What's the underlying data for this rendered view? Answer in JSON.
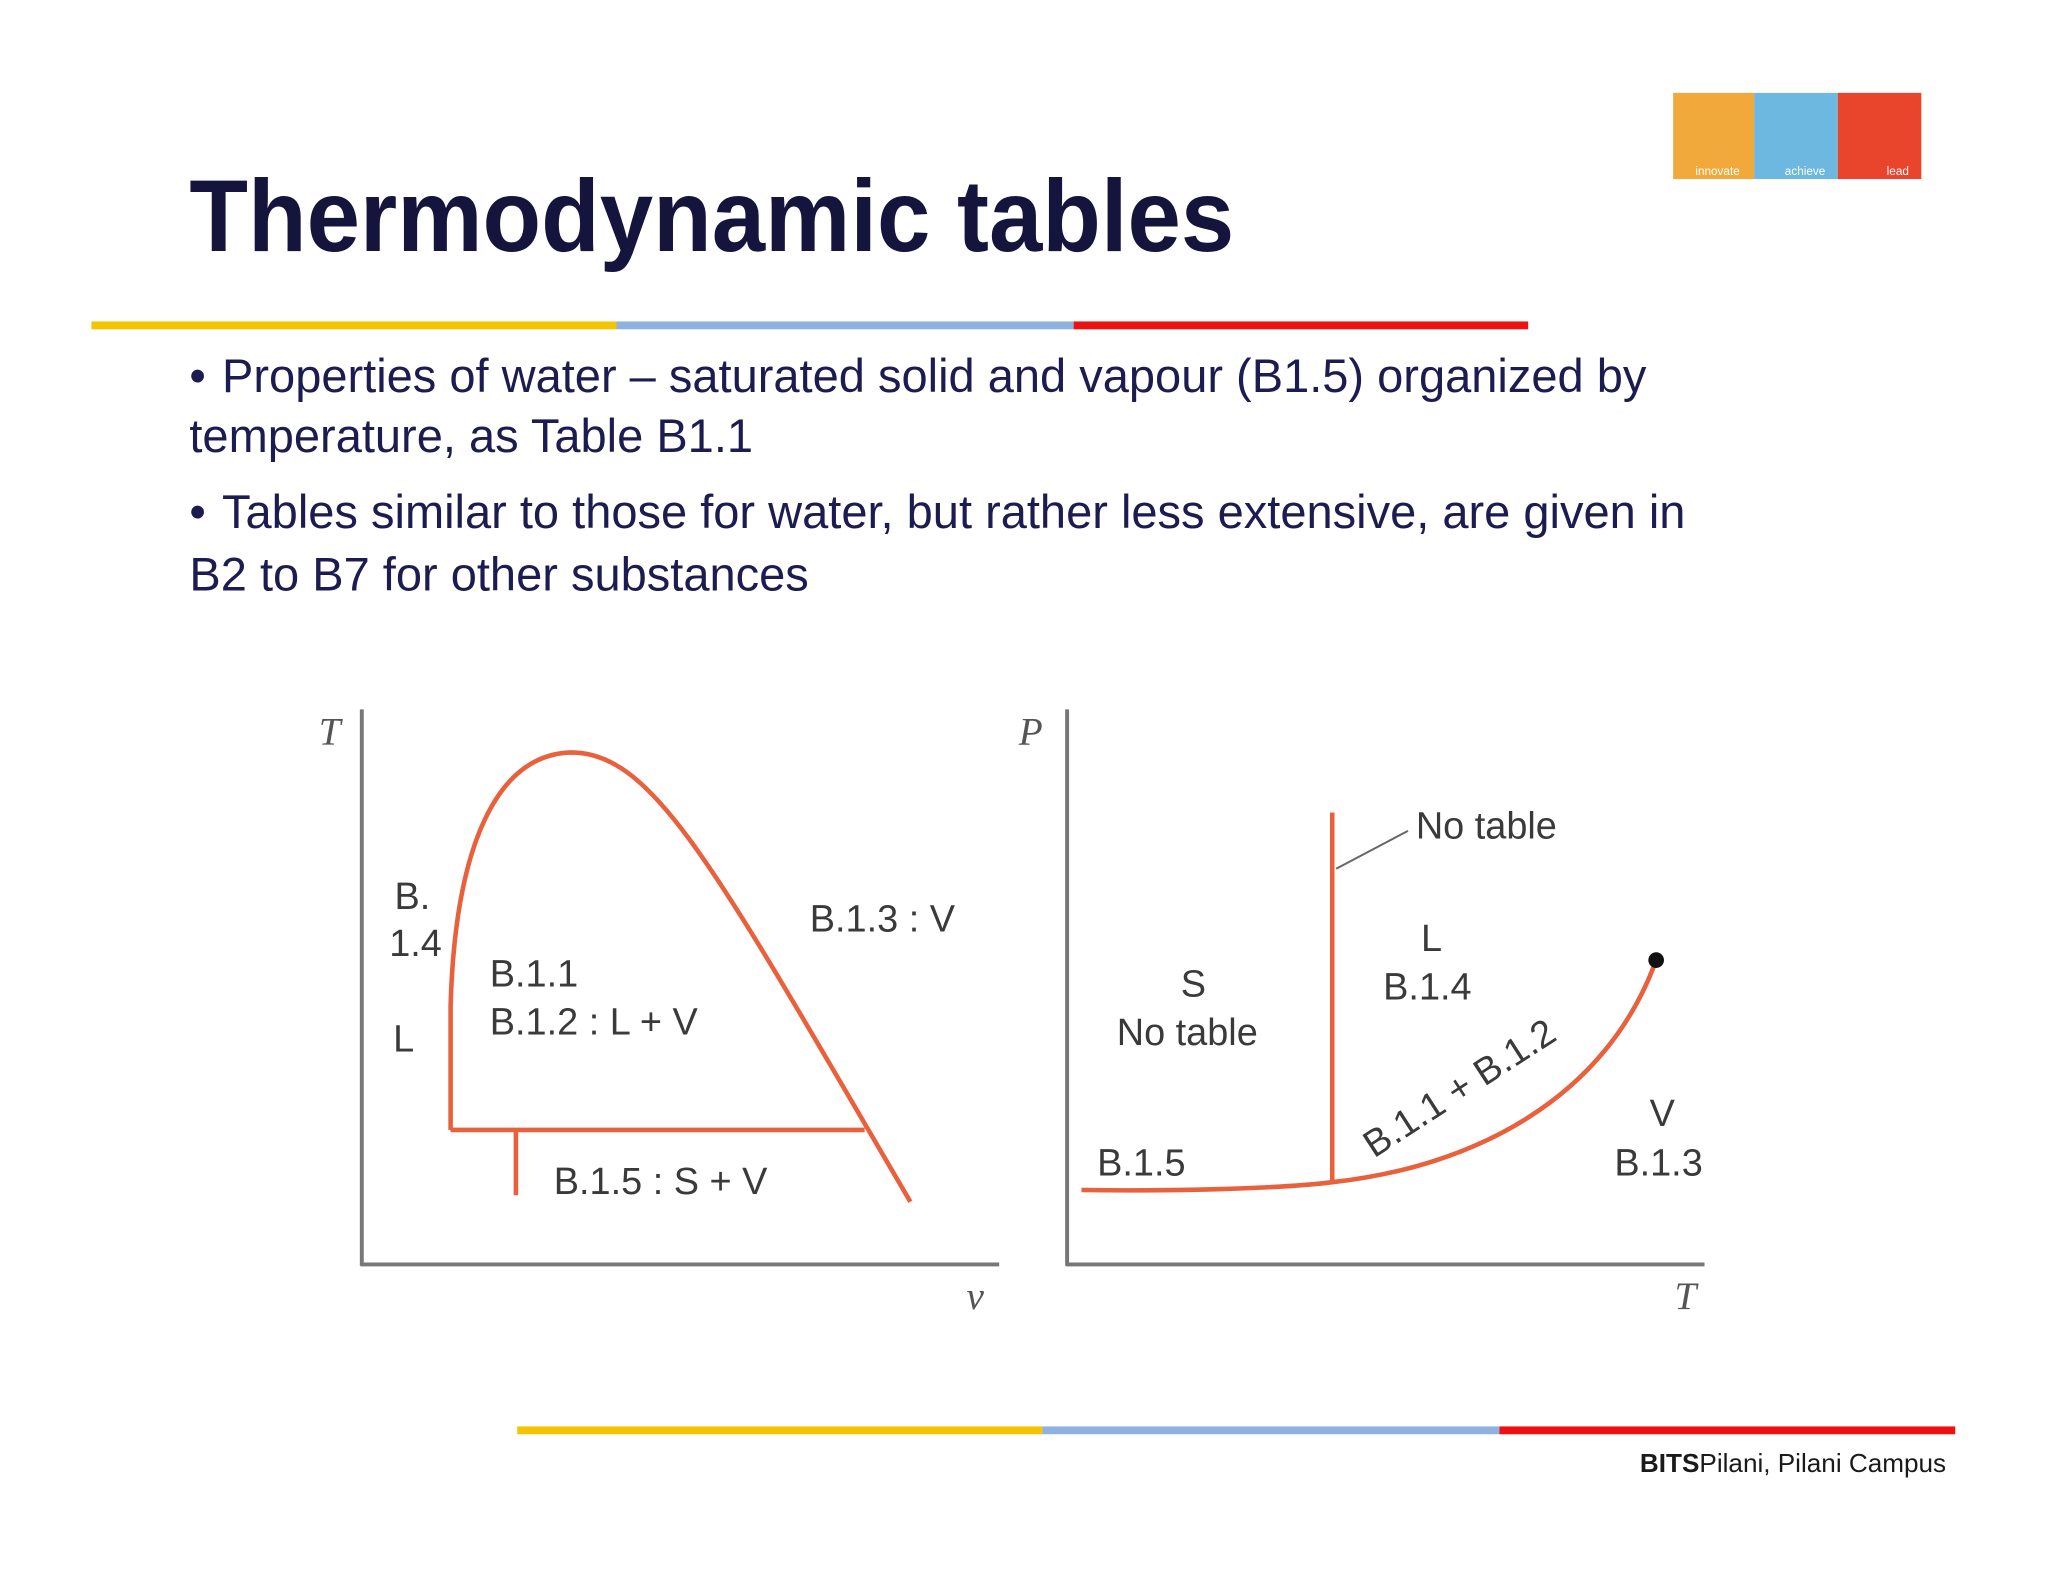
{
  "header": {
    "title": "Thermodynamic tables"
  },
  "logo": {
    "words": [
      "innovate",
      "achieve",
      "lead"
    ]
  },
  "bullets": [
    {
      "lines": [
        "Properties of water – saturated solid and vapour (B1.5) organized by",
        "temperature, as Table B1.1"
      ]
    },
    {
      "lines": [
        "Tables similar to those for water, but rather less extensive, are given in",
        "B2 to B7 for other substances"
      ]
    }
  ],
  "figures": [
    {
      "y_axis": "T",
      "x_axis": "v",
      "labels": [
        "B.",
        "1.4",
        "L",
        "B.1.1",
        "B.1.2 : L + V",
        "B.1.3 : V",
        "B.1.5 : S + V"
      ]
    },
    {
      "y_axis": "P",
      "x_axis": "T",
      "labels": [
        "No table",
        "L",
        "B.1.4",
        "S",
        "No table",
        "B.1.5",
        "B.1.1 + B.1.2",
        "V",
        "B.1.3"
      ]
    }
  ],
  "footer": {
    "brand": "BITS",
    "campus": "Pilani, Pilani Campus"
  }
}
